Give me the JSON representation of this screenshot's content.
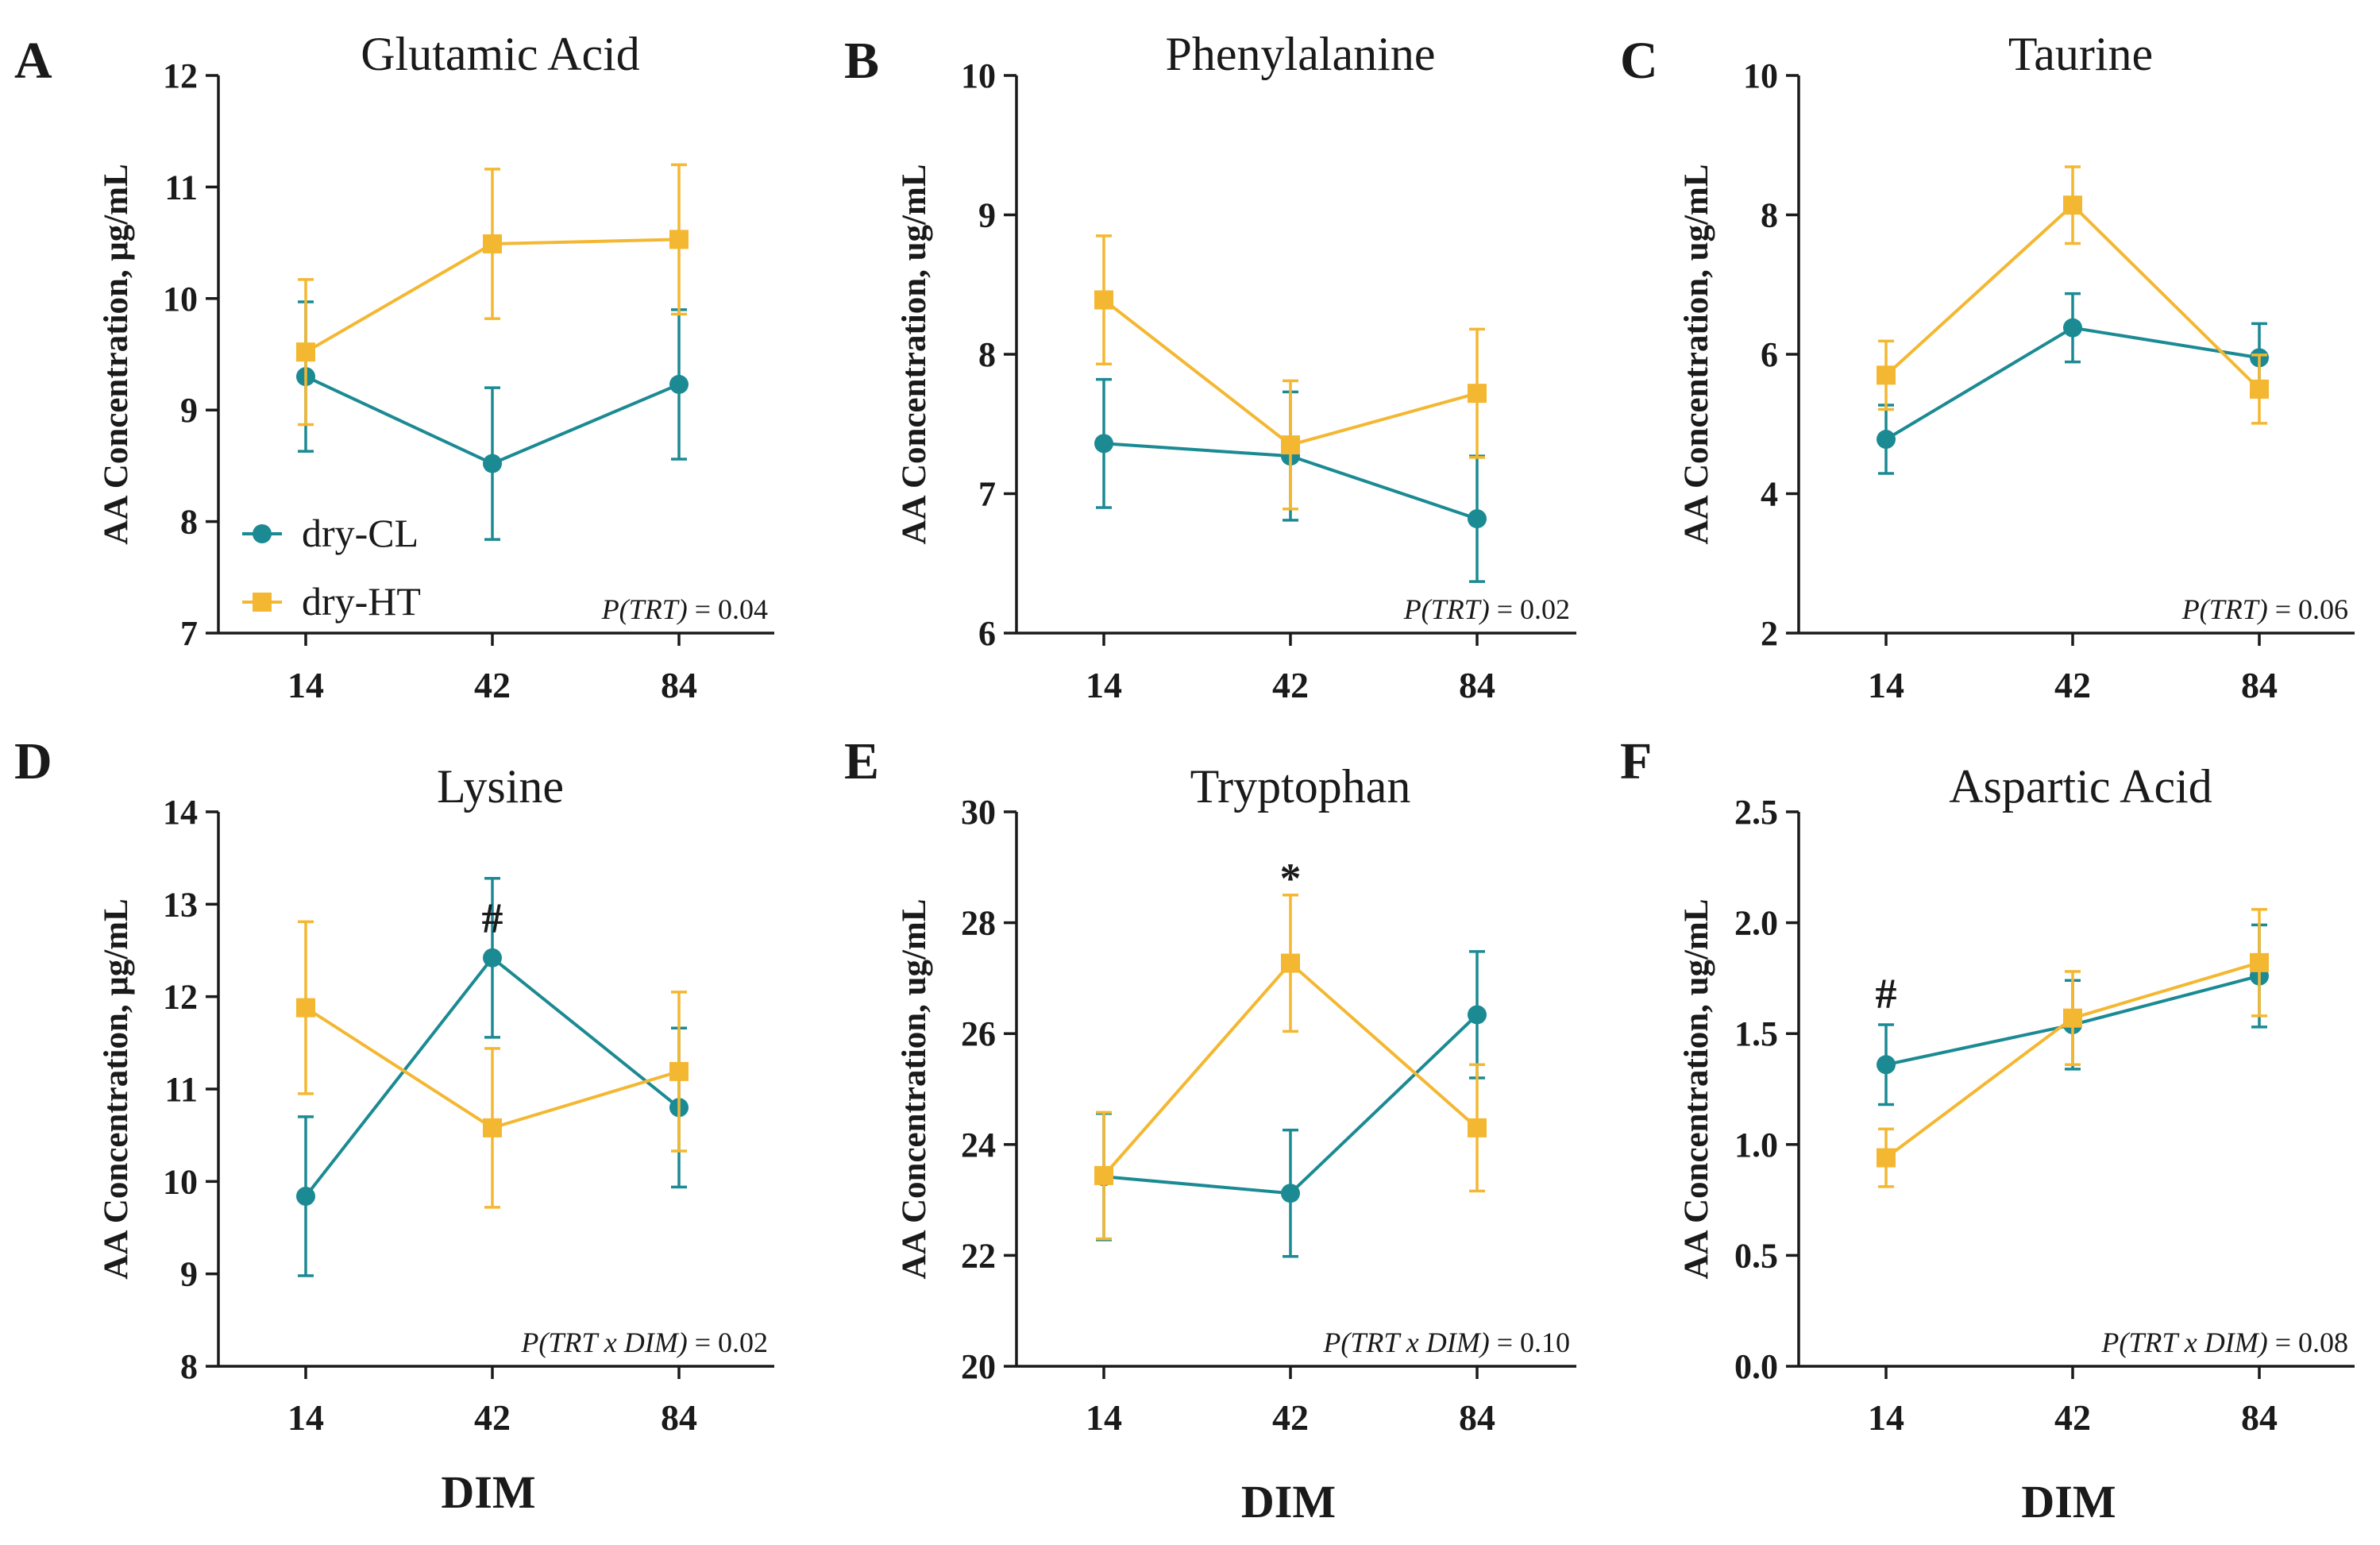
{
  "colors": {
    "dry_CL": "#1b8a93",
    "dry_HT": "#f4b731",
    "axis": "#1a1a1a"
  },
  "chart_data": [
    {
      "type": "line",
      "panel": "A",
      "title": "Glutamic Acid",
      "ylabel": "AA Concentration, μg/mL",
      "xlabel": "",
      "categories": [
        "14",
        "42",
        "84"
      ],
      "ylim": [
        7,
        12
      ],
      "yticks": [
        "7",
        "8",
        "9",
        "10",
        "11",
        "12"
      ],
      "series": [
        {
          "name": "dry-CL",
          "marker": "circle",
          "values": [
            9.3,
            8.52,
            9.23
          ],
          "errors": [
            0.67,
            0.68,
            0.67
          ]
        },
        {
          "name": "dry-HT",
          "marker": "square",
          "values": [
            9.52,
            10.49,
            10.53
          ],
          "errors": [
            0.65,
            0.67,
            0.67
          ]
        }
      ],
      "annotations": [],
      "pvalue": {
        "label": "P(TRT)",
        "value": " = 0.04"
      },
      "legend": {
        "location": "bottom-left",
        "entries": [
          "dry-CL",
          "dry-HT"
        ]
      }
    },
    {
      "type": "line",
      "panel": "B",
      "title": "Phenylalanine",
      "ylabel": "AA Concentration, ug/mL",
      "xlabel": "",
      "categories": [
        "14",
        "42",
        "84"
      ],
      "ylim": [
        6,
        10
      ],
      "yticks": [
        "6",
        "7",
        "8",
        "9",
        "10"
      ],
      "series": [
        {
          "name": "dry-CL",
          "marker": "circle",
          "values": [
            7.36,
            7.27,
            6.82
          ],
          "errors": [
            0.46,
            0.46,
            0.45
          ]
        },
        {
          "name": "dry-HT",
          "marker": "square",
          "values": [
            8.39,
            7.35,
            7.72
          ],
          "errors": [
            0.46,
            0.46,
            0.46
          ]
        }
      ],
      "annotations": [],
      "pvalue": {
        "label": "P(TRT)",
        "value": " = 0.02"
      }
    },
    {
      "type": "line",
      "panel": "C",
      "title": "Taurine",
      "ylabel": "AA Concentration, ug/mL",
      "xlabel": "",
      "categories": [
        "14",
        "42",
        "84"
      ],
      "ylim": [
        2,
        10
      ],
      "yticks": [
        "2",
        "4",
        "6",
        "8",
        "10"
      ],
      "series": [
        {
          "name": "dry-CL",
          "marker": "circle",
          "values": [
            4.78,
            6.38,
            5.95
          ],
          "errors": [
            0.49,
            0.49,
            0.49
          ]
        },
        {
          "name": "dry-HT",
          "marker": "square",
          "values": [
            5.7,
            8.14,
            5.5
          ],
          "errors": [
            0.49,
            0.55,
            0.49
          ]
        }
      ],
      "annotations": [],
      "pvalue": {
        "label": "P(TRT)",
        "value": " = 0.06"
      }
    },
    {
      "type": "line",
      "panel": "D",
      "title": "Lysine",
      "ylabel": "AA Concentration, μg/mL",
      "xlabel": "DIM",
      "categories": [
        "14",
        "42",
        "84"
      ],
      "ylim": [
        8,
        14
      ],
      "yticks": [
        "8",
        "9",
        "10",
        "11",
        "12",
        "13",
        "14"
      ],
      "series": [
        {
          "name": "dry-CL",
          "marker": "circle",
          "values": [
            9.84,
            12.42,
            10.8
          ],
          "errors": [
            0.86,
            0.86,
            0.86
          ]
        },
        {
          "name": "dry-HT",
          "marker": "square",
          "values": [
            11.88,
            10.58,
            11.19
          ],
          "errors": [
            0.93,
            0.86,
            0.86
          ]
        }
      ],
      "annotations": [
        {
          "category": "42",
          "text": "#",
          "y": 12.85
        }
      ],
      "pvalue": {
        "label": "P(TRT x DIM)",
        "value": " = 0.02"
      }
    },
    {
      "type": "line",
      "panel": "E",
      "title": "Tryptophan",
      "ylabel": "AA Concentration, ug/mL",
      "xlabel": "DIM",
      "categories": [
        "14",
        "42",
        "84"
      ],
      "ylim": [
        20,
        30
      ],
      "yticks": [
        "20",
        "22",
        "24",
        "26",
        "28",
        "30"
      ],
      "series": [
        {
          "name": "dry-CL",
          "marker": "circle",
          "values": [
            23.42,
            23.12,
            26.34
          ],
          "errors": [
            1.14,
            1.14,
            1.14
          ]
        },
        {
          "name": "dry-HT",
          "marker": "square",
          "values": [
            23.44,
            27.27,
            24.3
          ],
          "errors": [
            1.14,
            1.23,
            1.14
          ]
        }
      ],
      "annotations": [
        {
          "category": "42",
          "text": "*",
          "y": 28.8
        }
      ],
      "pvalue": {
        "label": "P(TRT x DIM)",
        "value": " = 0.10"
      }
    },
    {
      "type": "line",
      "panel": "F",
      "title": "Aspartic Acid",
      "ylabel": "AA Concentration, ug/mL",
      "xlabel": "DIM",
      "categories": [
        "14",
        "42",
        "84"
      ],
      "ylim": [
        0,
        2.5
      ],
      "yticks": [
        "0.0",
        "0.5",
        "1.0",
        "1.5",
        "2.0",
        "2.5"
      ],
      "series": [
        {
          "name": "dry-CL",
          "marker": "circle",
          "values": [
            1.36,
            1.54,
            1.76
          ],
          "errors": [
            0.18,
            0.2,
            0.23
          ]
        },
        {
          "name": "dry-HT",
          "marker": "square",
          "values": [
            0.94,
            1.57,
            1.82
          ],
          "errors": [
            0.13,
            0.21,
            0.24
          ]
        }
      ],
      "annotations": [
        {
          "category": "14",
          "text": "#",
          "y": 1.68
        }
      ],
      "pvalue": {
        "label": "P(TRT x DIM)",
        "value": " = 0.08"
      }
    }
  ]
}
